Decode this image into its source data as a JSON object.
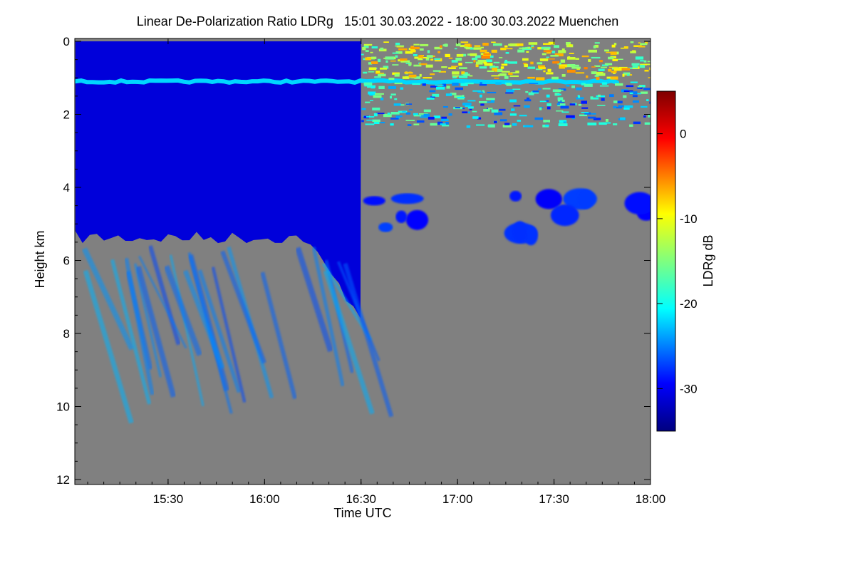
{
  "chart_data": {
    "type": "heatmap",
    "title": "Linear De-Polarization Ratio LDRg   15:01 30.03.2022 - 18:00 30.03.2022 Muenchen",
    "xlabel": "Time UTC",
    "ylabel": "Height km",
    "x_range": [
      "15:01",
      "18:00"
    ],
    "x_ticks": [
      "15:30",
      "16:00",
      "16:30",
      "17:00",
      "17:30",
      "18:00"
    ],
    "y_range": [
      0,
      12
    ],
    "y_ticks": [
      "0",
      "2",
      "4",
      "6",
      "8",
      "10",
      "12"
    ],
    "colorbar": {
      "label": "LDRg dB",
      "range": [
        -35,
        5
      ],
      "ticks": [
        "0",
        "-10",
        "-20",
        "-30"
      ],
      "tick_values": [
        0,
        -10,
        -20,
        -30
      ]
    },
    "background_color": "#808080",
    "features": [
      {
        "type": "aerosol-layer",
        "t_start": 15.02,
        "t_end": 16.5,
        "h_bottom": 0,
        "h_top": 5.2,
        "ldr": -31
      },
      {
        "type": "bright-band",
        "t_start": 15.02,
        "t_end": 17.85,
        "h": 1.1,
        "ldr": -22
      },
      {
        "type": "mixed-layer",
        "t_start": 16.5,
        "t_end": 18.0,
        "h_bottom": 1.1,
        "h_top": 2.3,
        "ldr": -22
      },
      {
        "type": "clutter-region",
        "t_start": 16.5,
        "t_end": 18.0,
        "h_bottom": 0,
        "h_top": 1.0,
        "ldr": -12
      },
      {
        "type": "cirrus-patch",
        "t_start": 16.55,
        "t_end": 16.95,
        "h_bottom": 4.1,
        "h_top": 5.1,
        "ldr": -30
      },
      {
        "type": "cirrus-patch",
        "t_start": 17.3,
        "t_end": 17.55,
        "h_bottom": 4.2,
        "h_top": 5.4,
        "ldr": -30
      },
      {
        "type": "cirrus-patch",
        "t_start": 17.55,
        "t_end": 18.0,
        "h_bottom": 4.2,
        "h_top": 4.8,
        "ldr": -30
      }
    ]
  }
}
